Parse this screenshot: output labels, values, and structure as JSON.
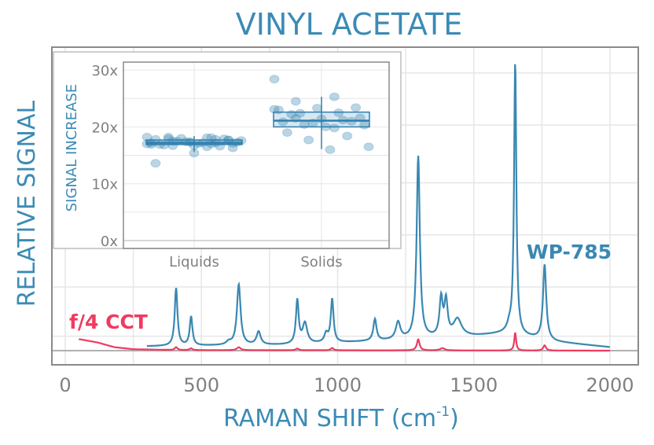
{
  "chart_data": [
    {
      "type": "line",
      "title": "VINYL ACETATE",
      "xlabel": "RAMAN SHIFT (cm",
      "xlabel_sup": "-1",
      "xlabel_end": ")",
      "ylabel": "RELATIVE SIGNAL",
      "xlim": [
        -50,
        2100
      ],
      "xticks": [
        0,
        500,
        1000,
        1500,
        2000
      ],
      "ylim": [
        -0.03,
        1.03
      ],
      "grid": true,
      "colors": {
        "title": "#3b8bb5",
        "blue": "#3a88b2",
        "red": "#f03a60",
        "axis": "#808080",
        "grid": "#e6e6e6"
      },
      "series": [
        {
          "name": "WP-785",
          "color": "#3a88b2",
          "x_range": [
            300,
            2000
          ],
          "baseline": [
            [
              300,
              0.015
            ],
            [
              800,
              0.02
            ],
            [
              1200,
              0.035
            ],
            [
              1500,
              0.05
            ],
            [
              1620,
              0.06
            ],
            [
              1800,
              0.03
            ],
            [
              2000,
              0.012
            ]
          ],
          "peaks": [
            [
              407,
              0.2,
              6
            ],
            [
              462,
              0.1,
              6
            ],
            [
              600,
              0.01,
              10
            ],
            [
              637,
              0.21,
              8
            ],
            [
              710,
              0.045,
              9
            ],
            [
              852,
              0.15,
              6
            ],
            [
              880,
              0.07,
              10
            ],
            [
              958,
              0.03,
              8
            ],
            [
              980,
              0.15,
              6
            ],
            [
              1137,
              0.075,
              7
            ],
            [
              1222,
              0.06,
              10
            ],
            [
              1296,
              0.63,
              7
            ],
            [
              1380,
              0.13,
              7
            ],
            [
              1398,
              0.12,
              7
            ],
            [
              1440,
              0.06,
              18
            ],
            [
              1630,
              0.02,
              8
            ],
            [
              1652,
              0.94,
              5
            ],
            [
              1760,
              0.26,
              7
            ]
          ]
        },
        {
          "name": "f/4 CCT",
          "color": "#f03a60",
          "x_range": [
            50,
            2000
          ],
          "baseline": [
            [
              50,
              0.04
            ],
            [
              120,
              0.028
            ],
            [
              180,
              0.012
            ],
            [
              250,
              0.005
            ],
            [
              400,
              0.002
            ],
            [
              2000,
              0.0
            ]
          ],
          "peaks": [
            [
              407,
              0.01,
              6
            ],
            [
              462,
              0.006,
              6
            ],
            [
              637,
              0.01,
              8
            ],
            [
              852,
              0.006,
              6
            ],
            [
              980,
              0.008,
              6
            ],
            [
              1296,
              0.038,
              6
            ],
            [
              1385,
              0.008,
              10
            ],
            [
              1652,
              0.062,
              4
            ],
            [
              1760,
              0.018,
              6
            ]
          ]
        }
      ]
    },
    {
      "type": "box",
      "ylabel": "SIGNAL INCREASE",
      "ylim": [
        -1.5,
        31
      ],
      "yticks": [
        "0x",
        "10x",
        "20x",
        "30x"
      ],
      "ytick_values": [
        0,
        10,
        20,
        30
      ],
      "categories": [
        "Liquids",
        "Solids"
      ],
      "boxes": [
        {
          "category": "Liquids",
          "whisker_low": 15.6,
          "q1": 16.9,
          "median": 17.2,
          "q3": 17.7,
          "whisker_high": 18.4
        },
        {
          "category": "Solids",
          "whisker_low": 16.1,
          "q1": 20.0,
          "median": 21.1,
          "q3": 22.6,
          "whisker_high": 25.3
        }
      ],
      "points": [
        {
          "category": "Liquids",
          "values": [
            18.2,
            18.1,
            17.9,
            17.7,
            17.4,
            17.2,
            17.0,
            16.7,
            16.3,
            15.4,
            13.6,
            17.8,
            17.5,
            17.3,
            17.1,
            16.9,
            16.6,
            18.0,
            17.6,
            17.2,
            16.8,
            17.9,
            17.4,
            17.0,
            16.5,
            18.2,
            17.7,
            17.3,
            16.9,
            18.1,
            17.5,
            17.1,
            16.7,
            17.8,
            17.2
          ]
        },
        {
          "category": "Solids",
          "values": [
            28.4,
            25.3,
            24.5,
            23.4,
            23.3,
            23.0,
            22.5,
            22.4,
            21.6,
            21.4,
            20.9,
            21.2,
            20.4,
            20.3,
            20.0,
            19.0,
            18.4,
            17.7,
            16.5,
            16.0,
            22.2,
            21.0,
            20.7,
            23.1,
            19.8,
            21.5
          ]
        }
      ]
    }
  ],
  "labels": {
    "wp785": "WP-785",
    "cct": "f/4 CCT"
  }
}
